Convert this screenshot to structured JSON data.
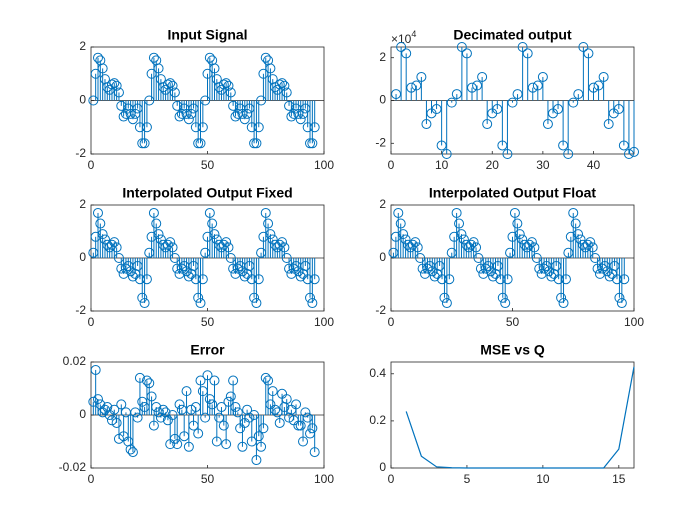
{
  "chart_data": [
    {
      "type": "stem",
      "title": "Input Signal",
      "color": "#0072bd",
      "x": [
        1,
        2,
        3,
        4,
        5,
        6,
        7,
        8,
        9,
        10,
        11,
        12,
        13,
        14,
        15,
        16,
        17,
        18,
        19,
        20,
        21,
        22,
        23,
        24,
        25,
        26,
        27,
        28,
        29,
        30,
        31,
        32,
        33,
        34,
        35,
        36,
        37,
        38,
        39,
        40,
        41,
        42,
        43,
        44,
        45,
        46,
        47,
        48,
        49,
        50,
        51,
        52,
        53,
        54,
        55,
        56,
        57,
        58,
        59,
        60,
        61,
        62,
        63,
        64,
        65,
        66,
        67,
        68,
        69,
        70,
        71,
        72,
        73,
        74,
        75,
        76,
        77,
        78,
        79,
        80,
        81,
        82,
        83,
        84,
        85,
        86,
        87,
        88,
        89,
        90,
        91,
        92,
        93,
        94,
        95,
        96
      ],
      "values": [
        0,
        1.0,
        1.6,
        1.5,
        1.2,
        0.8,
        0.5,
        0.4,
        0.6,
        0.65,
        0.55,
        0.3,
        -0.2,
        -0.6,
        -0.5,
        -0.3,
        -0.5,
        -0.7,
        -0.5,
        -0.3,
        -1.0,
        -1.6,
        -1.6,
        -1.0,
        0,
        1.0,
        1.6,
        1.5,
        1.2,
        0.8,
        0.5,
        0.4,
        0.6,
        0.65,
        0.55,
        0.3,
        -0.2,
        -0.6,
        -0.5,
        -0.3,
        -0.5,
        -0.7,
        -0.5,
        -0.3,
        -1.0,
        -1.6,
        -1.6,
        -1.0,
        0,
        1.0,
        1.6,
        1.5,
        1.2,
        0.8,
        0.5,
        0.4,
        0.6,
        0.65,
        0.55,
        0.3,
        -0.2,
        -0.6,
        -0.5,
        -0.3,
        -0.5,
        -0.7,
        -0.5,
        -0.3,
        -1.0,
        -1.6,
        -1.6,
        -1.0,
        0,
        1.0,
        1.6,
        1.5,
        1.2,
        0.8,
        0.5,
        0.4,
        0.6,
        0.65,
        0.55,
        0.3,
        -0.2,
        -0.6,
        -0.5,
        -0.3,
        -0.5,
        -0.7,
        -0.5,
        -0.3,
        -1.0,
        -1.6,
        -1.6,
        -1.0
      ],
      "xlim": [
        0,
        100
      ],
      "xticks": [
        0,
        50,
        100
      ],
      "ylim": [
        -2,
        2
      ],
      "yticks": [
        -2,
        0,
        2
      ]
    },
    {
      "type": "stem",
      "title": "Decimated output",
      "color": "#0072bd",
      "y_multiplier_base": "×10",
      "y_multiplier_power": "4",
      "x": [
        1,
        2,
        3,
        4,
        5,
        6,
        7,
        8,
        9,
        10,
        11,
        12,
        13,
        14,
        15,
        16,
        17,
        18,
        19,
        20,
        21,
        22,
        23,
        24,
        25,
        26,
        27,
        28,
        29,
        30,
        31,
        32,
        33,
        34,
        35,
        36,
        37,
        38,
        39,
        40,
        41,
        42,
        43,
        44,
        45,
        46,
        47,
        48
      ],
      "values": [
        0.3,
        2.5,
        2.2,
        0.6,
        0.7,
        1.1,
        -1.1,
        -0.6,
        -0.4,
        -2.1,
        -2.5,
        -0.1,
        0.3,
        2.5,
        2.2,
        0.6,
        0.7,
        1.1,
        -1.1,
        -0.6,
        -0.4,
        -2.1,
        -2.5,
        -0.1,
        0.3,
        2.5,
        2.2,
        0.6,
        0.7,
        1.1,
        -1.1,
        -0.6,
        -0.4,
        -2.1,
        -2.5,
        -0.1,
        0.3,
        2.5,
        2.2,
        0.6,
        0.7,
        1.1,
        -1.1,
        -0.6,
        -0.4,
        -2.1,
        -2.5,
        -2.4
      ],
      "xlim": [
        0,
        48
      ],
      "xticks": [
        0,
        10,
        20,
        30,
        40
      ],
      "ylim": [
        -2.5,
        2.5
      ],
      "yticks": [
        -2,
        0,
        2
      ]
    },
    {
      "type": "stem",
      "title": "Interpolated Output Fixed",
      "color": "#0072bd",
      "x": [
        1,
        2,
        3,
        4,
        5,
        6,
        7,
        8,
        9,
        10,
        11,
        12,
        13,
        14,
        15,
        16,
        17,
        18,
        19,
        20,
        21,
        22,
        23,
        24,
        25,
        26,
        27,
        28,
        29,
        30,
        31,
        32,
        33,
        34,
        35,
        36,
        37,
        38,
        39,
        40,
        41,
        42,
        43,
        44,
        45,
        46,
        47,
        48,
        49,
        50,
        51,
        52,
        53,
        54,
        55,
        56,
        57,
        58,
        59,
        60,
        61,
        62,
        63,
        64,
        65,
        66,
        67,
        68,
        69,
        70,
        71,
        72,
        73,
        74,
        75,
        76,
        77,
        78,
        79,
        80,
        81,
        82,
        83,
        84,
        85,
        86,
        87,
        88,
        89,
        90,
        91,
        92,
        93,
        94,
        95,
        96
      ],
      "values": [
        0.2,
        0.8,
        1.7,
        1.3,
        0.9,
        0.7,
        0.5,
        0.4,
        0.5,
        0.6,
        0.4,
        0,
        -0.4,
        -0.6,
        -0.4,
        -0.3,
        -0.5,
        -0.7,
        -0.6,
        -0.3,
        -0.8,
        -1.5,
        -1.7,
        -0.8,
        0.2,
        0.8,
        1.7,
        1.3,
        0.9,
        0.7,
        0.5,
        0.4,
        0.5,
        0.6,
        0.4,
        0,
        -0.4,
        -0.6,
        -0.4,
        -0.3,
        -0.5,
        -0.7,
        -0.6,
        -0.3,
        -0.8,
        -1.5,
        -1.7,
        -0.8,
        0.2,
        0.8,
        1.7,
        1.3,
        0.9,
        0.7,
        0.5,
        0.4,
        0.5,
        0.6,
        0.4,
        0,
        -0.4,
        -0.6,
        -0.4,
        -0.3,
        -0.5,
        -0.7,
        -0.6,
        -0.3,
        -0.8,
        -1.5,
        -1.7,
        -0.8,
        0.2,
        0.8,
        1.7,
        1.3,
        0.9,
        0.7,
        0.5,
        0.4,
        0.5,
        0.6,
        0.4,
        0,
        -0.4,
        -0.6,
        -0.4,
        -0.3,
        -0.5,
        -0.7,
        -0.6,
        -0.3,
        -0.8,
        -1.5,
        -1.7,
        -0.8
      ],
      "xlim": [
        0,
        100
      ],
      "xticks": [
        0,
        50,
        100
      ],
      "ylim": [
        -2,
        2
      ],
      "yticks": [
        -2,
        0,
        2
      ]
    },
    {
      "type": "stem",
      "title": "Interpolated Output Float",
      "color": "#0072bd",
      "x": [
        1,
        2,
        3,
        4,
        5,
        6,
        7,
        8,
        9,
        10,
        11,
        12,
        13,
        14,
        15,
        16,
        17,
        18,
        19,
        20,
        21,
        22,
        23,
        24,
        25,
        26,
        27,
        28,
        29,
        30,
        31,
        32,
        33,
        34,
        35,
        36,
        37,
        38,
        39,
        40,
        41,
        42,
        43,
        44,
        45,
        46,
        47,
        48,
        49,
        50,
        51,
        52,
        53,
        54,
        55,
        56,
        57,
        58,
        59,
        60,
        61,
        62,
        63,
        64,
        65,
        66,
        67,
        68,
        69,
        70,
        71,
        72,
        73,
        74,
        75,
        76,
        77,
        78,
        79,
        80,
        81,
        82,
        83,
        84,
        85,
        86,
        87,
        88,
        89,
        90,
        91,
        92,
        93,
        94,
        95,
        96
      ],
      "values": [
        0.2,
        0.8,
        1.7,
        1.3,
        0.9,
        0.7,
        0.5,
        0.4,
        0.5,
        0.6,
        0.4,
        0,
        -0.4,
        -0.6,
        -0.4,
        -0.3,
        -0.5,
        -0.7,
        -0.6,
        -0.3,
        -0.8,
        -1.5,
        -1.7,
        -0.8,
        0.2,
        0.8,
        1.7,
        1.3,
        0.9,
        0.7,
        0.5,
        0.4,
        0.5,
        0.6,
        0.4,
        0,
        -0.4,
        -0.6,
        -0.4,
        -0.3,
        -0.5,
        -0.7,
        -0.6,
        -0.3,
        -0.8,
        -1.5,
        -1.7,
        -0.8,
        0.2,
        0.8,
        1.7,
        1.3,
        0.9,
        0.7,
        0.5,
        0.4,
        0.5,
        0.6,
        0.4,
        0,
        -0.4,
        -0.6,
        -0.4,
        -0.3,
        -0.5,
        -0.7,
        -0.6,
        -0.3,
        -0.8,
        -1.5,
        -1.7,
        -0.8,
        0.2,
        0.8,
        1.7,
        1.3,
        0.9,
        0.7,
        0.5,
        0.4,
        0.5,
        0.6,
        0.4,
        0,
        -0.4,
        -0.6,
        -0.4,
        -0.3,
        -0.5,
        -0.7,
        -0.6,
        -0.3,
        -0.8,
        -1.5,
        -1.7,
        -0.8
      ],
      "xlim": [
        0,
        100
      ],
      "xticks": [
        0,
        50,
        100
      ],
      "ylim": [
        -2,
        2
      ],
      "yticks": [
        -2,
        0,
        2
      ]
    },
    {
      "type": "stem",
      "title": "Error",
      "color": "#0072bd",
      "x": [
        1,
        2,
        3,
        4,
        5,
        6,
        7,
        8,
        9,
        10,
        11,
        12,
        13,
        14,
        15,
        16,
        17,
        18,
        19,
        20,
        21,
        22,
        23,
        24,
        25,
        26,
        27,
        28,
        29,
        30,
        31,
        32,
        33,
        34,
        35,
        36,
        37,
        38,
        39,
        40,
        41,
        42,
        43,
        44,
        45,
        46,
        47,
        48,
        49,
        50,
        51,
        52,
        53,
        54,
        55,
        56,
        57,
        58,
        59,
        60,
        61,
        62,
        63,
        64,
        65,
        66,
        67,
        68,
        69,
        70,
        71,
        72,
        73,
        74,
        75,
        76,
        77,
        78,
        79,
        80,
        81,
        82,
        83,
        84,
        85,
        86,
        87,
        88,
        89,
        90,
        91,
        92,
        93,
        94,
        95,
        96
      ],
      "values": [
        0.005,
        0.017,
        0.006,
        0.004,
        0.001,
        0.002,
        0.003,
        0,
        -0.002,
        0.002,
        -0.003,
        -0.009,
        0.004,
        -0.008,
        0.001,
        -0.01,
        -0.013,
        -0.014,
        0.001,
        -0.001,
        0.014,
        0.005,
        0.003,
        0.013,
        0.012,
        0.007,
        -0.004,
        0.003,
        0.001,
        -0.001,
        0.002,
        0.001,
        -0.002,
        -0.011,
        0,
        -0.009,
        -0.011,
        0.004,
        0.002,
        -0.008,
        0.009,
        -0.012,
        0.002,
        -0.004,
        0.003,
        -0.007,
        0.013,
        0.009,
        -0.001,
        0.015,
        0.006,
        0.004,
        0.013,
        -0.01,
        -0.001,
        0.003,
        -0.004,
        -0.011,
        0.005,
        0.007,
        0.013,
        0.003,
        0.001,
        -0.005,
        -0.012,
        -0.003,
        0.002,
        -0.001,
        -0.01,
        0,
        -0.017,
        -0.008,
        -0.012,
        -0.005,
        0.014,
        0.013,
        0.004,
        0.009,
        0.002,
        0.001,
        -0.003,
        0.008,
        0.003,
        0.006,
        -0.001,
        0.002,
        -0.002,
        0.004,
        -0.004,
        -0.004,
        -0.01,
        0.001,
        -0.001,
        -0.007,
        -0.005,
        -0.014
      ],
      "xlim": [
        0,
        100
      ],
      "xticks": [
        0,
        50,
        100
      ],
      "ylim": [
        -0.02,
        0.02
      ],
      "yticks": [
        -0.02,
        0,
        0.02
      ]
    },
    {
      "type": "line",
      "title": "MSE vs Q",
      "color": "#0072bd",
      "x": [
        1,
        2,
        3,
        4,
        5,
        6,
        7,
        8,
        9,
        10,
        11,
        12,
        13,
        14,
        15,
        16
      ],
      "values": [
        0.24,
        0.05,
        0.005,
        0.001,
        0,
        0,
        0,
        0,
        0,
        0,
        0,
        0,
        0,
        0,
        0.08,
        0.43
      ],
      "xlim": [
        0,
        16
      ],
      "xticks": [
        0,
        5,
        10,
        15
      ],
      "ylim": [
        0,
        0.45
      ],
      "yticks": [
        0,
        0.2,
        0.4
      ]
    }
  ]
}
